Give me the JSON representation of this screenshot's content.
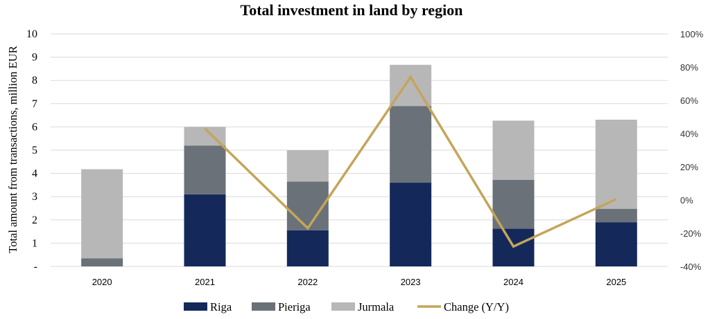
{
  "chart_data": {
    "type": "bar",
    "stacked": true,
    "title": "Total investment in land by region",
    "ylabel": "Total amount from transactions, million EUR",
    "xlabel": "",
    "categories": [
      "2020",
      "2021",
      "2022",
      "2023",
      "2024",
      "2025"
    ],
    "ylim": [
      0,
      10
    ],
    "y_ticks": [
      "-",
      "1",
      "2",
      "3",
      "4",
      "5",
      "6",
      "7",
      "8",
      "9",
      "10"
    ],
    "y2lim": [
      -40,
      100
    ],
    "y2_ticks": [
      "-40%",
      "-20%",
      "0%",
      "20%",
      "40%",
      "60%",
      "80%",
      "100%"
    ],
    "grid": true,
    "legend_position": "bottom",
    "series": [
      {
        "name": "Riga",
        "type": "bar",
        "color": "#14285a",
        "values": [
          0,
          3.1,
          1.55,
          3.6,
          1.62,
          1.9
        ]
      },
      {
        "name": "Pieriga",
        "type": "bar",
        "color": "#6a7178",
        "values": [
          0.35,
          2.1,
          2.1,
          3.3,
          2.1,
          0.58
        ]
      },
      {
        "name": "Jurmala",
        "type": "bar",
        "color": "#b7b7b7",
        "values": [
          3.83,
          0.8,
          1.35,
          1.77,
          2.55,
          3.83
        ]
      },
      {
        "name": "Change (Y/Y)",
        "type": "line",
        "axis": "secondary",
        "color": "#c4a55a",
        "values": [
          null,
          43,
          -17,
          74,
          -28,
          0.5
        ]
      }
    ]
  }
}
